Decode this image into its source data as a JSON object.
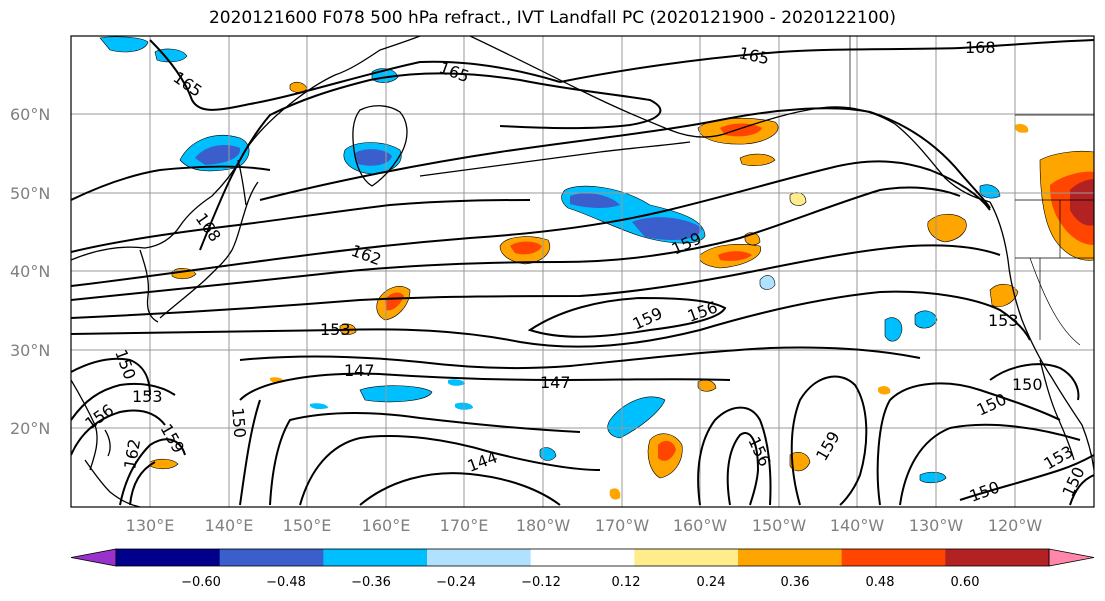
{
  "title": "2020121600 F078 500 hPa refract., IVT Landfall PC (2020121900 - 2020122100)",
  "map": {
    "lat_labels": [
      "60°N",
      "50°N",
      "40°N",
      "30°N",
      "20°N"
    ],
    "lon_labels": [
      "130°E",
      "140°E",
      "150°E",
      "160°E",
      "170°E",
      "180°W",
      "170°W",
      "160°W",
      "150°W",
      "140°W",
      "130°W",
      "120°W"
    ],
    "gridlines": true,
    "gridline_color": "#999999",
    "tick_label_color": "#808080"
  },
  "contours": {
    "variable": "500 hPa refract.",
    "labels": [
      "165",
      "165",
      "165",
      "168",
      "168",
      "162",
      "159",
      "159",
      "156",
      "153",
      "153",
      "153",
      "150",
      "150",
      "150",
      "150",
      "150",
      "147",
      "147",
      "144",
      "156",
      "159",
      "156",
      "159",
      "162",
      "153",
      "150"
    ]
  },
  "colorbar": {
    "ticks": [
      "−0.60",
      "−0.48",
      "−0.36",
      "−0.24",
      "−0.12",
      "0.12",
      "0.24",
      "0.36",
      "0.48",
      "0.60"
    ],
    "colors": [
      "#9932cc",
      "#00008b",
      "#3a5fcd",
      "#00bfff",
      "#b0e2ff",
      "#ffffff",
      "#ffec8b",
      "#ffa500",
      "#ff4500",
      "#b22222",
      "#ff88aa"
    ],
    "extend": "both"
  }
}
